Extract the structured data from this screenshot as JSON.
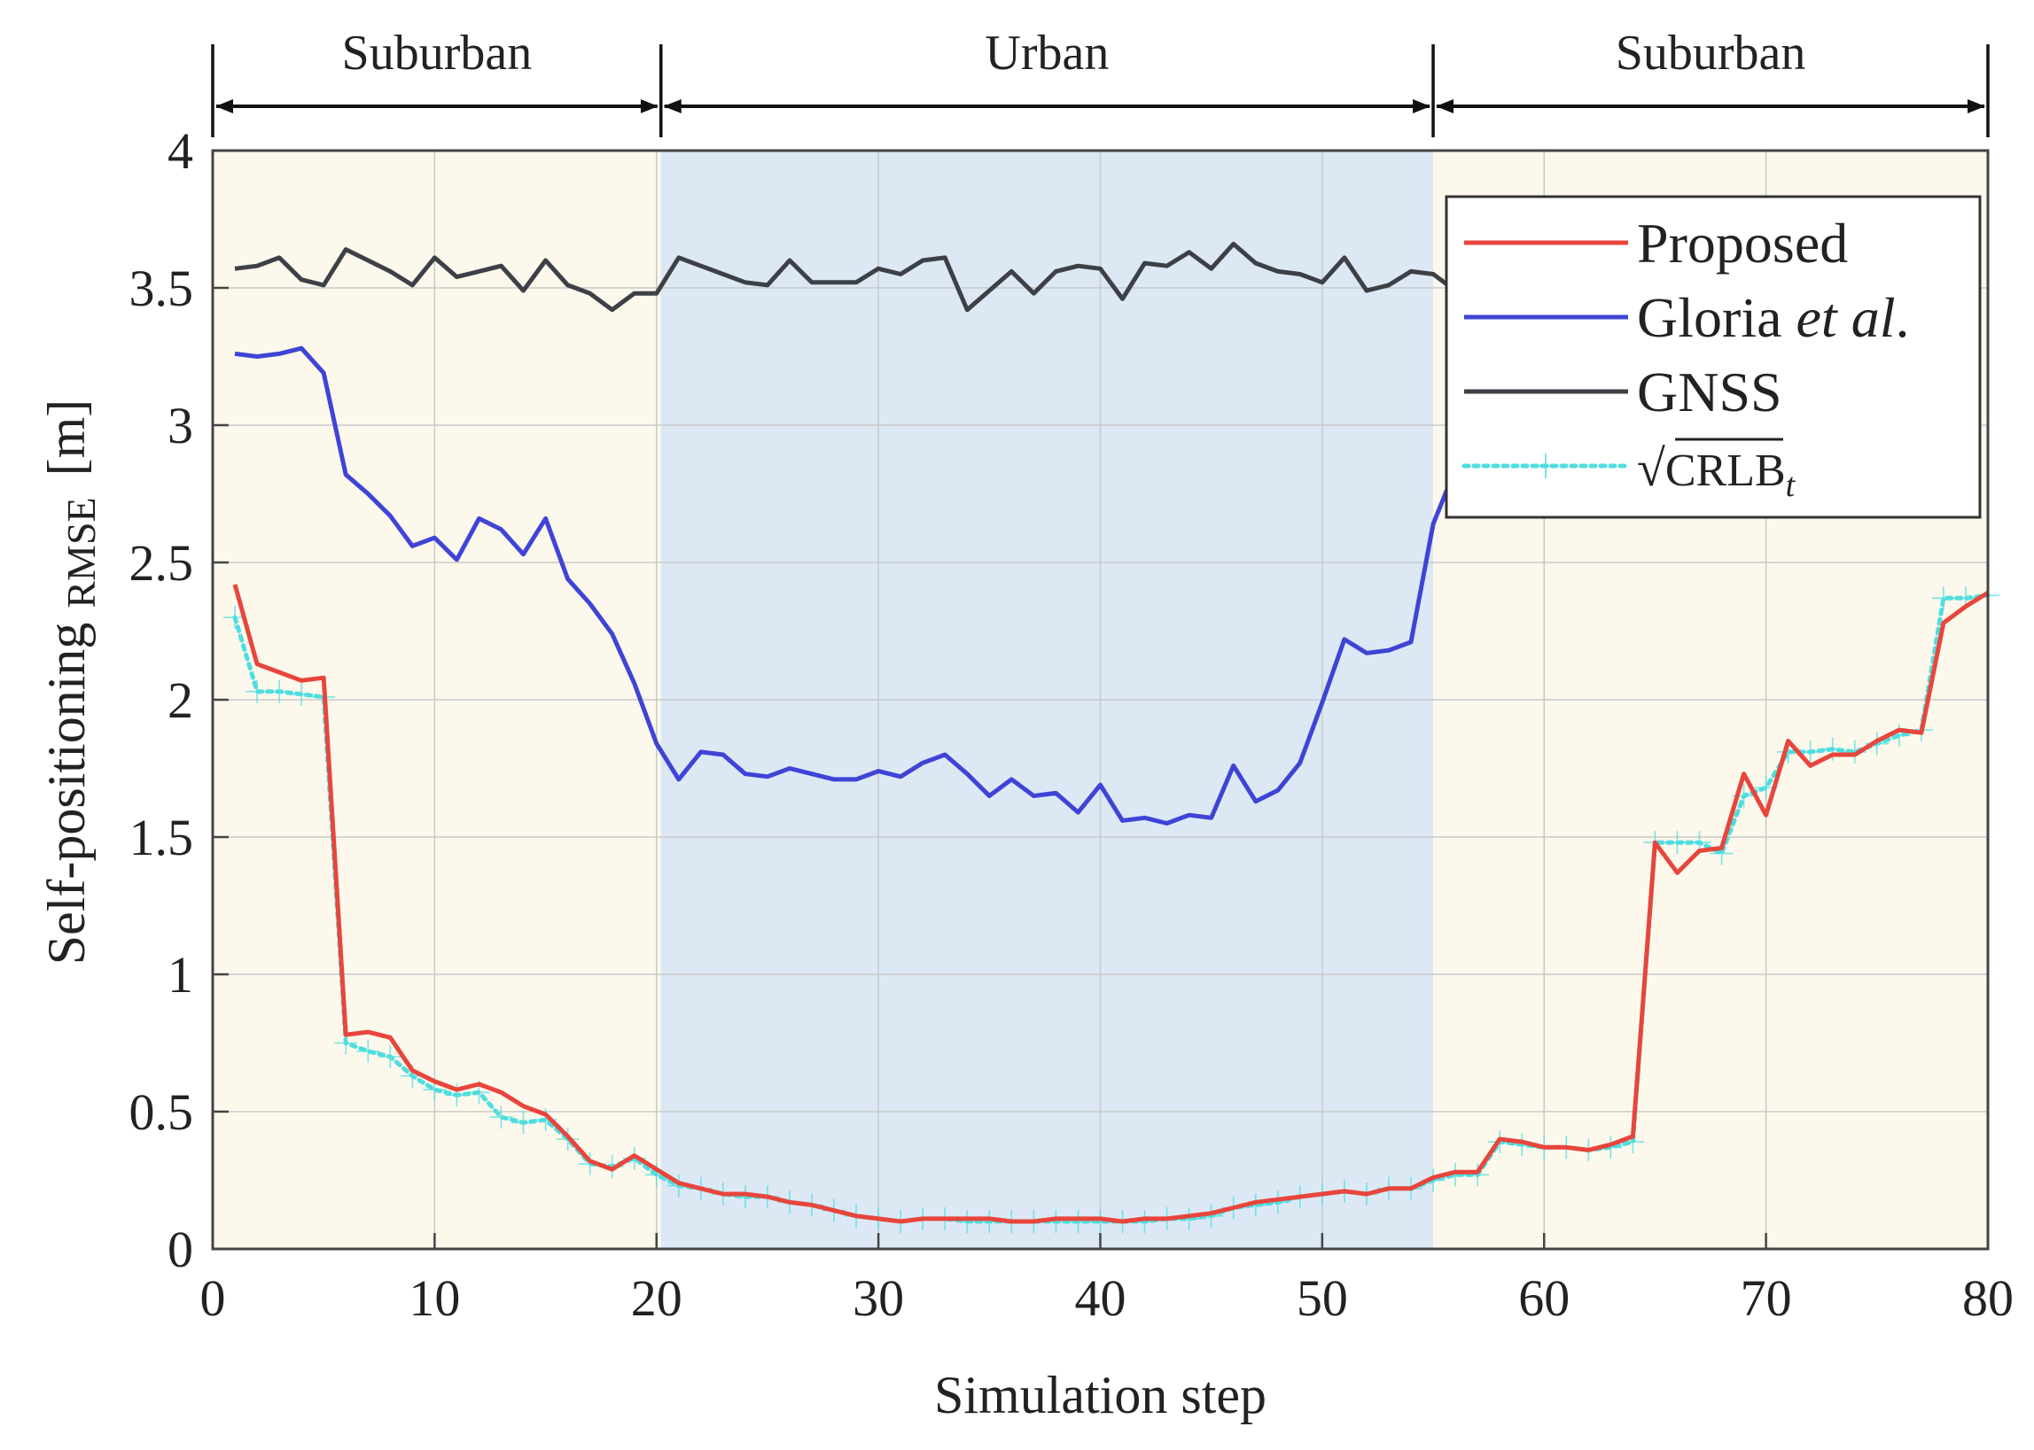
{
  "chart_data": {
    "type": "line",
    "xlabel": "Simulation step",
    "ylabel": "Self-positioning",
    "ylabel_sub": "RMSE",
    "ylabel_unit": "[m]",
    "xlim": [
      0,
      80
    ],
    "ylim": [
      0,
      4
    ],
    "xticks": [
      0,
      10,
      20,
      30,
      40,
      50,
      60,
      70,
      80
    ],
    "yticks": [
      0,
      0.5,
      1,
      1.5,
      2,
      2.5,
      3,
      3.5,
      4
    ],
    "ytick_labels": [
      "0",
      "0.5",
      "1",
      "1.5",
      "2",
      "2.5",
      "3",
      "3.5",
      "4"
    ],
    "grid": true,
    "legend_position": "top-right",
    "regions": [
      {
        "label": "Suburban",
        "from": 0,
        "to": 20.2,
        "color": "#fcf8ec"
      },
      {
        "label": "Urban",
        "from": 20.2,
        "to": 55,
        "color": "#dce9f4"
      },
      {
        "label": "Suburban",
        "from": 55,
        "to": 80,
        "color": "#fcf8ec"
      }
    ],
    "series": [
      {
        "name": "Proposed",
        "color": "#e8453c",
        "style": "solid",
        "x_start": 1,
        "values": [
          2.42,
          2.13,
          2.1,
          2.07,
          2.08,
          0.78,
          0.79,
          0.77,
          0.65,
          0.61,
          0.58,
          0.6,
          0.57,
          0.52,
          0.49,
          0.41,
          0.32,
          0.29,
          0.34,
          0.29,
          0.24,
          0.22,
          0.2,
          0.2,
          0.19,
          0.17,
          0.16,
          0.14,
          0.12,
          0.11,
          0.1,
          0.11,
          0.11,
          0.11,
          0.11,
          0.1,
          0.1,
          0.11,
          0.11,
          0.11,
          0.1,
          0.11,
          0.11,
          0.12,
          0.13,
          0.15,
          0.17,
          0.18,
          0.19,
          0.2,
          0.21,
          0.2,
          0.22,
          0.22,
          0.26,
          0.28,
          0.28,
          0.4,
          0.39,
          0.37,
          0.37,
          0.36,
          0.38,
          0.41,
          1.48,
          1.37,
          1.45,
          1.46,
          1.73,
          1.58,
          1.85,
          1.76,
          1.8,
          1.8,
          1.85,
          1.89,
          1.88,
          2.28,
          2.34,
          2.39
        ]
      },
      {
        "name": "Gloria et al.",
        "color": "#3f44d6",
        "style": "solid",
        "x_start": 1,
        "values": [
          3.26,
          3.25,
          3.26,
          3.28,
          3.19,
          2.82,
          2.75,
          2.67,
          2.56,
          2.59,
          2.51,
          2.66,
          2.62,
          2.53,
          2.66,
          2.44,
          2.35,
          2.24,
          2.06,
          1.84,
          1.71,
          1.81,
          1.8,
          1.73,
          1.72,
          1.75,
          1.73,
          1.71,
          1.71,
          1.74,
          1.72,
          1.77,
          1.8,
          1.73,
          1.65,
          1.71,
          1.65,
          1.66,
          1.59,
          1.69,
          1.56,
          1.57,
          1.55,
          1.58,
          1.57,
          1.76,
          1.63,
          1.67,
          1.77,
          1.99,
          2.22,
          2.17,
          2.18,
          2.21,
          2.64,
          2.84
        ]
      },
      {
        "name": "GNSS",
        "color": "#3d4046",
        "style": "solid",
        "x_start": 1,
        "values": [
          3.57,
          3.58,
          3.61,
          3.53,
          3.51,
          3.64,
          3.6,
          3.56,
          3.51,
          3.61,
          3.54,
          3.56,
          3.58,
          3.49,
          3.6,
          3.51,
          3.48,
          3.42,
          3.48,
          3.48,
          3.61,
          3.58,
          3.55,
          3.52,
          3.51,
          3.6,
          3.52,
          3.52,
          3.52,
          3.57,
          3.55,
          3.6,
          3.61,
          3.42,
          3.49,
          3.56,
          3.48,
          3.56,
          3.58,
          3.57,
          3.46,
          3.59,
          3.58,
          3.63,
          3.57,
          3.66,
          3.59,
          3.56,
          3.55,
          3.52,
          3.61,
          3.49,
          3.51,
          3.56,
          3.55,
          3.49
        ]
      },
      {
        "name": "√CRLB_t",
        "color": "#4fdde0",
        "style": "dotted",
        "marker": "plus",
        "x_start": 1,
        "values": [
          2.3,
          2.03,
          2.03,
          2.02,
          2.01,
          0.75,
          0.72,
          0.7,
          0.63,
          0.58,
          0.56,
          0.57,
          0.48,
          0.46,
          0.47,
          0.4,
          0.31,
          0.3,
          0.33,
          0.27,
          0.23,
          0.22,
          0.2,
          0.19,
          0.19,
          0.17,
          0.16,
          0.14,
          0.12,
          0.11,
          0.1,
          0.11,
          0.11,
          0.1,
          0.1,
          0.1,
          0.1,
          0.1,
          0.1,
          0.1,
          0.1,
          0.1,
          0.11,
          0.11,
          0.12,
          0.15,
          0.16,
          0.17,
          0.19,
          0.2,
          0.21,
          0.2,
          0.22,
          0.22,
          0.25,
          0.27,
          0.27,
          0.39,
          0.38,
          0.37,
          0.37,
          0.36,
          0.37,
          0.39,
          1.48,
          1.48,
          1.48,
          1.44,
          1.65,
          1.68,
          1.81,
          1.81,
          1.82,
          1.81,
          1.84,
          1.87,
          1.89,
          2.37,
          2.37,
          2.38
        ]
      }
    ],
    "legend": [
      {
        "label": "Proposed",
        "color": "#e8453c",
        "style": "solid"
      },
      {
        "label": "Gloria",
        "label_italic": "et al",
        "label_tail": ".",
        "color": "#3f44d6",
        "style": "solid"
      },
      {
        "label": "GNSS",
        "color": "#3d4046",
        "style": "solid"
      },
      {
        "label": "CRLB",
        "label_sub": "t",
        "prefix": "√",
        "color": "#4fdde0",
        "style": "dotted"
      }
    ]
  }
}
